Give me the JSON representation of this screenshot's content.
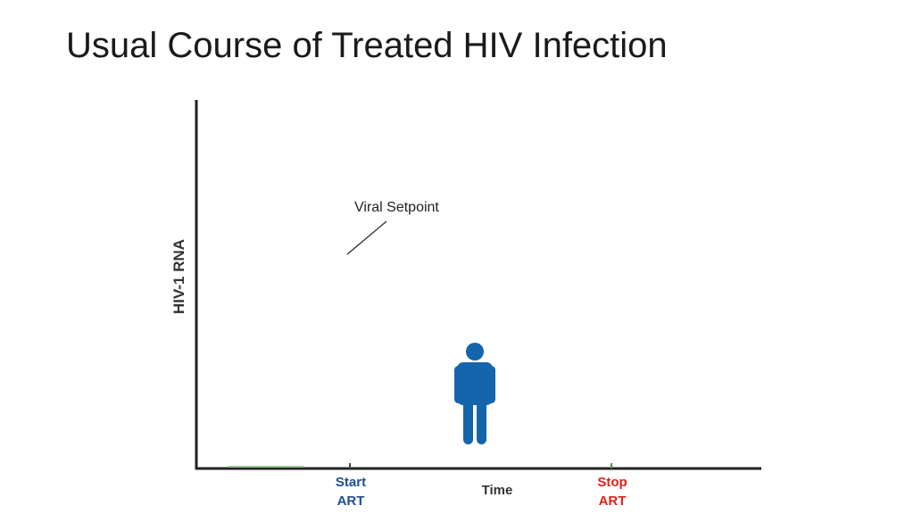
{
  "slide": {
    "title": "Usual Course of Treated HIV Infection"
  },
  "figure": {
    "y_axis_label": "HIV-1 RNA",
    "x_axis_label": "Time",
    "annotation": "Viral Setpoint",
    "markers": {
      "start": {
        "line1": "Start",
        "line2": "ART",
        "color": "#1f4e99"
      },
      "stop": {
        "line1": "Stop",
        "line2": "ART",
        "color": "#e0201b"
      }
    },
    "person_icon": {
      "name": "person-icon",
      "color": "#1565ad"
    },
    "axis_color": "#222222"
  }
}
